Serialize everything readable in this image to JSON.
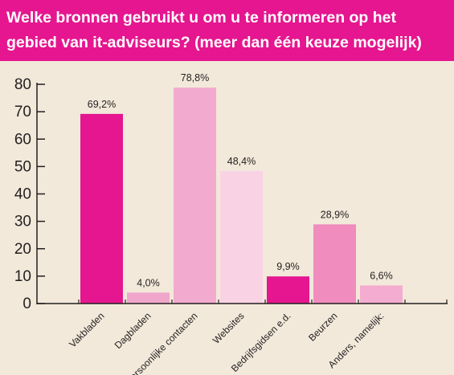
{
  "header": {
    "title": "Welke bronnen gebruikt u om u te informeren op het gebied van it-adviseurs? (meer dan één keuze mogelijk)",
    "background": "#e5168f"
  },
  "chart_data": {
    "type": "bar",
    "title": "Welke bronnen gebruikt u om u te informeren op het gebied van it-adviseurs? (meer dan één keuze mogelijk)",
    "xlabel": "",
    "ylabel": "",
    "ylim": [
      0,
      80
    ],
    "yticks": [
      0,
      10,
      20,
      30,
      40,
      50,
      60,
      70,
      80
    ],
    "grid": false,
    "categories": [
      "Vakbladen",
      "Dagbladen",
      "Persoonlijke contacten",
      "Websites",
      "Bedrijfsgidsen e.d.",
      "Beurzen",
      "Anders, namelijk:"
    ],
    "values": [
      69.2,
      4.0,
      78.8,
      48.4,
      9.9,
      28.9,
      6.6
    ],
    "value_labels": [
      "69,2%",
      "4,0%",
      "78,8%",
      "48,4%",
      "9,9%",
      "28,9%",
      "6,6%"
    ],
    "colors": [
      "#e5168f",
      "#f0a6cb",
      "#f3aacf",
      "#f9d3e4",
      "#e5168f",
      "#f08cbe",
      "#f4acd0"
    ]
  }
}
